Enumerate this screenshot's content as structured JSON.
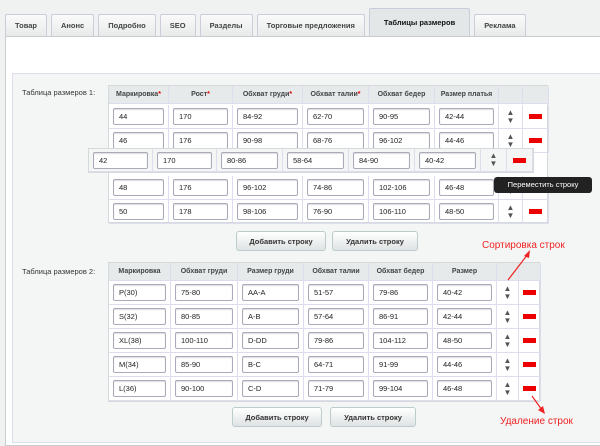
{
  "tabs": [
    "Товар",
    "Анонс",
    "Подробно",
    "SEO",
    "Разделы",
    "Торговые предложения",
    "Таблицы размеров",
    "Реклама"
  ],
  "active_tab": 6,
  "table1": {
    "label": "Таблица размеров 1:",
    "headers": [
      {
        "t": "Маркировка",
        "r": true
      },
      {
        "t": "Рост",
        "r": true
      },
      {
        "t": "Обхват груди",
        "r": true
      },
      {
        "t": "Обхват талии",
        "r": true
      },
      {
        "t": "Обхват бедер",
        "r": false
      },
      {
        "t": "Размер платья",
        "r": false
      }
    ],
    "rows": [
      [
        "44",
        "170",
        "84-92",
        "62-70",
        "90-95",
        "42-44"
      ],
      [
        "46",
        "176",
        "90-98",
        "68-76",
        "96-102",
        "44-46"
      ],
      [
        "48",
        "176",
        "96-102",
        "74-86",
        "102-106",
        "46-48"
      ],
      [
        "50",
        "178",
        "98-106",
        "76-90",
        "106-110",
        "48-50"
      ]
    ],
    "dragged_row": [
      "42",
      "170",
      "80-86",
      "58-64",
      "84-90",
      "40-42"
    ],
    "tooltip": "Переместить строку",
    "add_label": "Добавить строку",
    "remove_label": "Удалить строку"
  },
  "table2": {
    "label": "Таблица размеров 2:",
    "headers": [
      {
        "t": "Маркировка",
        "r": false
      },
      {
        "t": "Обхват груди",
        "r": false
      },
      {
        "t": "Размер груди",
        "r": false
      },
      {
        "t": "Обхват талии",
        "r": false
      },
      {
        "t": "Обхват бедер",
        "r": false
      },
      {
        "t": "Размер",
        "r": false
      }
    ],
    "rows": [
      [
        "P(30)",
        "75-80",
        "AA-A",
        "51-57",
        "79-86",
        "40-42"
      ],
      [
        "S(32)",
        "80-85",
        "A-B",
        "57-64",
        "86-91",
        "42-44"
      ],
      [
        "XL(38)",
        "100-110",
        "D-DD",
        "79-86",
        "104-112",
        "48-50"
      ],
      [
        "M(34)",
        "85-90",
        "B-C",
        "64-71",
        "91-99",
        "44-46"
      ],
      [
        "L(36)",
        "90-100",
        "C-D",
        "71-79",
        "99-104",
        "46-48"
      ]
    ],
    "add_label": "Добавить строку",
    "remove_label": "Удалить строку"
  },
  "annotations": {
    "sort": "Сортировка строк",
    "delete": "Удаление строк"
  },
  "colors": {
    "delete": "#ee0000",
    "annotation": "#e22222"
  }
}
